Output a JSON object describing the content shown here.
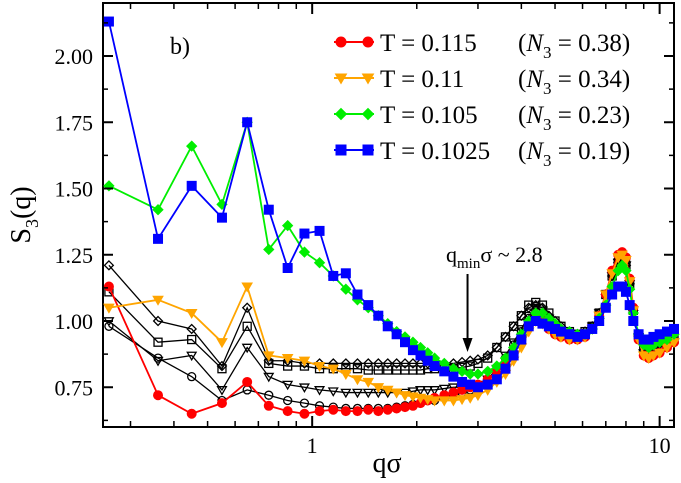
{
  "chart_data": {
    "type": "line",
    "panel_label": "b)",
    "xlabel": "qσ",
    "ylabel": "S3(q)",
    "ylabel_main": "S",
    "ylabel_sub": "3",
    "ylabel_tail": "(q)",
    "xscale": "log",
    "xlim": [
      0.25,
      11
    ],
    "ylim": [
      0.6,
      2.2
    ],
    "xticks": [
      1,
      10
    ],
    "xtick_labels": [
      "1",
      "10"
    ],
    "yticks": [
      0.75,
      1.0,
      1.25,
      1.5,
      1.75,
      2.0
    ],
    "ytick_labels": [
      "0.75",
      "1.00",
      "1.25",
      "1.50",
      "1.75",
      "2.00"
    ],
    "annotation": {
      "prefix": "q",
      "sub": "min",
      "suffix": "σ ~ 2.8",
      "arrow_x": 2.8
    },
    "series": [
      {
        "name": "T = 0.115",
        "n3_prefix": "N",
        "n3_sub": "3",
        "n3_value": "= 0.38",
        "marker": "circle",
        "color": "#ff0000",
        "x": [
          0.26,
          0.36,
          0.45,
          0.55,
          0.65,
          0.75,
          0.85,
          0.95,
          1.05,
          1.15,
          1.25,
          1.35,
          1.45,
          1.55,
          1.65,
          1.75,
          1.85,
          1.95,
          2.05,
          2.15,
          2.25,
          2.4,
          2.55,
          2.7,
          2.85,
          3.0,
          3.2,
          3.4,
          3.6,
          3.8,
          4.0,
          4.2,
          4.4,
          4.6,
          4.8,
          5.0,
          5.2,
          5.5,
          5.8,
          6.1,
          6.4,
          6.7,
          7.0,
          7.3,
          7.6,
          7.8,
          8.0,
          8.2,
          8.4,
          8.7,
          9.0,
          9.3,
          9.6,
          10.0,
          10.5,
          11.0
        ],
        "values": [
          1.13,
          0.72,
          0.65,
          0.69,
          0.77,
          0.68,
          0.66,
          0.65,
          0.66,
          0.665,
          0.66,
          0.66,
          0.665,
          0.66,
          0.665,
          0.67,
          0.675,
          0.68,
          0.69,
          0.7,
          0.71,
          0.72,
          0.73,
          0.74,
          0.75,
          0.76,
          0.78,
          0.81,
          0.84,
          0.88,
          0.93,
          0.98,
          1.01,
          1.0,
          0.97,
          0.95,
          0.94,
          0.93,
          0.93,
          0.94,
          0.97,
          1.02,
          1.1,
          1.19,
          1.25,
          1.26,
          1.24,
          1.16,
          1.05,
          0.93,
          0.87,
          0.86,
          0.87,
          0.88,
          0.9,
          0.92
        ]
      },
      {
        "name": "T = 0.11",
        "n3_prefix": "N",
        "n3_sub": "3",
        "n3_value": "= 0.34",
        "marker": "triangle-down",
        "color": "#ffa500",
        "x": [
          0.26,
          0.36,
          0.45,
          0.55,
          0.65,
          0.75,
          0.85,
          0.95,
          1.05,
          1.15,
          1.25,
          1.35,
          1.45,
          1.55,
          1.65,
          1.75,
          1.85,
          1.95,
          2.05,
          2.15,
          2.25,
          2.4,
          2.55,
          2.7,
          2.85,
          3.0,
          3.2,
          3.4,
          3.6,
          3.8,
          4.0,
          4.2,
          4.4,
          4.6,
          4.8,
          5.0,
          5.2,
          5.5,
          5.8,
          6.1,
          6.4,
          6.7,
          7.0,
          7.3,
          7.6,
          7.8,
          8.0,
          8.2,
          8.4,
          8.7,
          9.0,
          9.3,
          9.6,
          10.0,
          10.5,
          11.0
        ],
        "values": [
          1.05,
          1.08,
          1.03,
          0.92,
          1.13,
          0.87,
          0.86,
          0.85,
          0.83,
          0.82,
          0.8,
          0.78,
          0.77,
          0.75,
          0.74,
          0.73,
          0.72,
          0.715,
          0.71,
          0.705,
          0.7,
          0.7,
          0.7,
          0.705,
          0.71,
          0.72,
          0.74,
          0.77,
          0.8,
          0.85,
          0.9,
          0.96,
          1.0,
          0.99,
          0.97,
          0.95,
          0.94,
          0.93,
          0.93,
          0.94,
          0.97,
          1.02,
          1.1,
          1.18,
          1.24,
          1.25,
          1.23,
          1.15,
          1.04,
          0.93,
          0.87,
          0.86,
          0.87,
          0.88,
          0.9,
          0.92
        ]
      },
      {
        "name": "T = 0.105",
        "n3_prefix": "N",
        "n3_sub": "3",
        "n3_value": "= 0.23",
        "marker": "diamond",
        "color": "#00ee00",
        "x": [
          0.26,
          0.36,
          0.45,
          0.55,
          0.65,
          0.75,
          0.85,
          0.95,
          1.05,
          1.15,
          1.25,
          1.35,
          1.45,
          1.55,
          1.65,
          1.75,
          1.85,
          1.95,
          2.05,
          2.15,
          2.25,
          2.4,
          2.55,
          2.7,
          2.85,
          3.0,
          3.2,
          3.4,
          3.6,
          3.8,
          4.0,
          4.2,
          4.4,
          4.6,
          4.8,
          5.0,
          5.2,
          5.5,
          5.8,
          6.1,
          6.4,
          6.7,
          7.0,
          7.3,
          7.6,
          7.8,
          8.0,
          8.2,
          8.4,
          8.7,
          9.0,
          9.3,
          9.6,
          10.0,
          10.5,
          11.0
        ],
        "values": [
          1.51,
          1.42,
          1.66,
          1.44,
          1.75,
          1.27,
          1.36,
          1.26,
          1.22,
          1.17,
          1.12,
          1.08,
          1.05,
          1.02,
          0.99,
          0.96,
          0.94,
          0.92,
          0.9,
          0.88,
          0.86,
          0.84,
          0.82,
          0.81,
          0.8,
          0.8,
          0.81,
          0.83,
          0.86,
          0.9,
          0.95,
          1.0,
          1.03,
          1.03,
          1.01,
          0.99,
          0.97,
          0.96,
          0.95,
          0.95,
          0.97,
          1.01,
          1.06,
          1.13,
          1.19,
          1.21,
          1.19,
          1.12,
          1.03,
          0.95,
          0.91,
          0.9,
          0.91,
          0.92,
          0.93,
          0.95
        ]
      },
      {
        "name": "T = 0.1025",
        "n3_prefix": "N",
        "n3_sub": "3",
        "n3_value": "= 0.19",
        "marker": "square",
        "color": "#0000ff",
        "x": [
          0.26,
          0.36,
          0.45,
          0.55,
          0.65,
          0.75,
          0.85,
          0.95,
          1.05,
          1.15,
          1.25,
          1.35,
          1.45,
          1.55,
          1.65,
          1.75,
          1.85,
          1.95,
          2.05,
          2.15,
          2.25,
          2.4,
          2.55,
          2.7,
          2.85,
          3.0,
          3.2,
          3.4,
          3.6,
          3.8,
          4.0,
          4.2,
          4.4,
          4.6,
          4.8,
          5.0,
          5.2,
          5.5,
          5.8,
          6.1,
          6.4,
          6.7,
          7.0,
          7.3,
          7.6,
          7.8,
          8.0,
          8.2,
          8.4,
          8.7,
          9.0,
          9.3,
          9.6,
          10.0,
          10.5,
          11.0
        ],
        "values": [
          2.13,
          1.31,
          1.51,
          1.39,
          1.75,
          1.42,
          1.2,
          1.33,
          1.34,
          1.17,
          1.18,
          1.1,
          1.06,
          1.02,
          0.98,
          0.95,
          0.92,
          0.89,
          0.87,
          0.85,
          0.83,
          0.81,
          0.79,
          0.77,
          0.76,
          0.75,
          0.76,
          0.78,
          0.82,
          0.87,
          0.93,
          0.98,
          1.0,
          0.99,
          0.98,
          0.97,
          0.96,
          0.95,
          0.94,
          0.95,
          0.97,
          1.0,
          1.05,
          1.1,
          1.13,
          1.13,
          1.11,
          1.06,
          1.0,
          0.95,
          0.93,
          0.93,
          0.94,
          0.95,
          0.96,
          0.97
        ]
      },
      {
        "name": "black-circle",
        "marker": "circle-open",
        "color": "#000000",
        "x": [
          0.26,
          0.36,
          0.45,
          0.55,
          0.65,
          0.75,
          0.85,
          0.95,
          1.05,
          1.15,
          1.25,
          1.35,
          1.45,
          1.55,
          1.65,
          1.75,
          1.85,
          1.95,
          2.05,
          2.15,
          2.25,
          2.4,
          2.55,
          2.7,
          2.85,
          3.0,
          3.2,
          3.4,
          3.6,
          3.8,
          4.0,
          4.2,
          4.4,
          4.6,
          4.8,
          5.0,
          5.2,
          5.5,
          5.8,
          6.1,
          6.4,
          6.7,
          7.0,
          7.3,
          7.6,
          7.8,
          8.0,
          8.2,
          8.4,
          8.7,
          9.0,
          9.3,
          9.6,
          10.0,
          10.5,
          11.0
        ],
        "values": [
          0.98,
          0.86,
          0.79,
          0.7,
          0.74,
          0.72,
          0.7,
          0.69,
          0.68,
          0.675,
          0.67,
          0.67,
          0.67,
          0.67,
          0.67,
          0.675,
          0.68,
          0.685,
          0.69,
          0.7,
          0.7,
          0.71,
          0.72,
          0.73,
          0.74,
          0.76,
          0.78,
          0.82,
          0.86,
          0.91,
          0.96,
          1.01,
          1.04,
          1.03,
          1.0,
          0.97,
          0.95,
          0.94,
          0.94,
          0.95,
          0.98,
          1.03,
          1.1,
          1.18,
          1.23,
          1.24,
          1.22,
          1.15,
          1.04,
          0.93,
          0.87,
          0.86,
          0.87,
          0.88,
          0.9,
          0.92
        ]
      },
      {
        "name": "black-triangle",
        "marker": "triangle-down-open",
        "color": "#000000",
        "x": [
          0.26,
          0.36,
          0.45,
          0.55,
          0.65,
          0.75,
          0.85,
          0.95,
          1.05,
          1.15,
          1.25,
          1.35,
          1.45,
          1.55,
          1.65,
          1.75,
          1.85,
          1.95,
          2.05,
          2.15,
          2.25,
          2.4,
          2.55,
          2.7,
          2.85,
          3.0,
          3.2,
          3.4,
          3.6,
          3.8,
          4.0,
          4.2,
          4.4,
          4.6,
          4.8,
          5.0,
          5.2,
          5.5,
          5.8,
          6.1,
          6.4,
          6.7,
          7.0,
          7.3,
          7.6,
          7.8,
          8.0,
          8.2,
          8.4,
          8.7,
          9.0,
          9.3,
          9.6,
          10.0,
          10.5,
          11.0
        ],
        "values": [
          1.0,
          0.85,
          0.87,
          0.74,
          0.9,
          0.79,
          0.76,
          0.75,
          0.74,
          0.735,
          0.73,
          0.73,
          0.73,
          0.73,
          0.73,
          0.73,
          0.73,
          0.735,
          0.74,
          0.74,
          0.74,
          0.745,
          0.75,
          0.75,
          0.755,
          0.76,
          0.78,
          0.82,
          0.87,
          0.92,
          0.97,
          1.02,
          1.05,
          1.04,
          1.01,
          0.98,
          0.96,
          0.95,
          0.94,
          0.95,
          0.98,
          1.03,
          1.1,
          1.17,
          1.22,
          1.23,
          1.21,
          1.14,
          1.04,
          0.94,
          0.88,
          0.87,
          0.88,
          0.89,
          0.9,
          0.92
        ]
      },
      {
        "name": "black-square",
        "marker": "square-open",
        "color": "#000000",
        "x": [
          0.26,
          0.36,
          0.45,
          0.55,
          0.65,
          0.75,
          0.85,
          0.95,
          1.05,
          1.15,
          1.25,
          1.35,
          1.45,
          1.55,
          1.65,
          1.75,
          1.85,
          1.95,
          2.05,
          2.15,
          2.25,
          2.4,
          2.55,
          2.7,
          2.85,
          3.0,
          3.2,
          3.4,
          3.6,
          3.8,
          4.0,
          4.2,
          4.4,
          4.6,
          4.8,
          5.0,
          5.2,
          5.5,
          5.8,
          6.1,
          6.4,
          6.7,
          7.0,
          7.3,
          7.6,
          7.8,
          8.0,
          8.2,
          8.4,
          8.7,
          9.0,
          9.3,
          9.6,
          10.0,
          10.5,
          11.0
        ],
        "values": [
          1.11,
          0.92,
          0.93,
          0.82,
          0.98,
          0.84,
          0.83,
          0.83,
          0.82,
          0.82,
          0.82,
          0.82,
          0.815,
          0.815,
          0.815,
          0.815,
          0.815,
          0.815,
          0.815,
          0.82,
          0.82,
          0.82,
          0.82,
          0.825,
          0.83,
          0.84,
          0.86,
          0.9,
          0.94,
          0.98,
          1.02,
          1.06,
          1.07,
          1.06,
          1.03,
          1.0,
          0.98,
          0.96,
          0.95,
          0.96,
          0.98,
          1.03,
          1.1,
          1.17,
          1.22,
          1.23,
          1.21,
          1.14,
          1.04,
          0.94,
          0.89,
          0.88,
          0.89,
          0.9,
          0.91,
          0.93
        ]
      },
      {
        "name": "black-diamond",
        "marker": "diamond-open",
        "color": "#000000",
        "x": [
          0.26,
          0.36,
          0.45,
          0.55,
          0.65,
          0.75,
          0.85,
          0.95,
          1.05,
          1.15,
          1.25,
          1.35,
          1.45,
          1.55,
          1.65,
          1.75,
          1.85,
          1.95,
          2.05,
          2.15,
          2.25,
          2.4,
          2.55,
          2.7,
          2.85,
          3.0,
          3.2,
          3.4,
          3.6,
          3.8,
          4.0,
          4.2,
          4.4,
          4.6,
          4.8,
          5.0,
          5.2,
          5.5,
          5.8,
          6.1,
          6.4,
          6.7,
          7.0,
          7.3,
          7.6,
          7.8,
          8.0,
          8.2,
          8.4,
          8.7,
          9.0,
          9.3,
          9.6,
          10.0,
          10.5,
          11.0
        ],
        "values": [
          1.21,
          1.0,
          0.97,
          0.83,
          1.05,
          0.85,
          0.85,
          0.84,
          0.84,
          0.84,
          0.84,
          0.84,
          0.84,
          0.84,
          0.84,
          0.84,
          0.84,
          0.84,
          0.84,
          0.84,
          0.84,
          0.84,
          0.84,
          0.845,
          0.85,
          0.855,
          0.87,
          0.9,
          0.94,
          0.98,
          1.02,
          1.05,
          1.06,
          1.05,
          1.02,
          1.0,
          0.98,
          0.96,
          0.95,
          0.96,
          0.98,
          1.03,
          1.1,
          1.17,
          1.22,
          1.23,
          1.21,
          1.14,
          1.04,
          0.94,
          0.89,
          0.88,
          0.89,
          0.9,
          0.91,
          0.93
        ]
      }
    ]
  }
}
